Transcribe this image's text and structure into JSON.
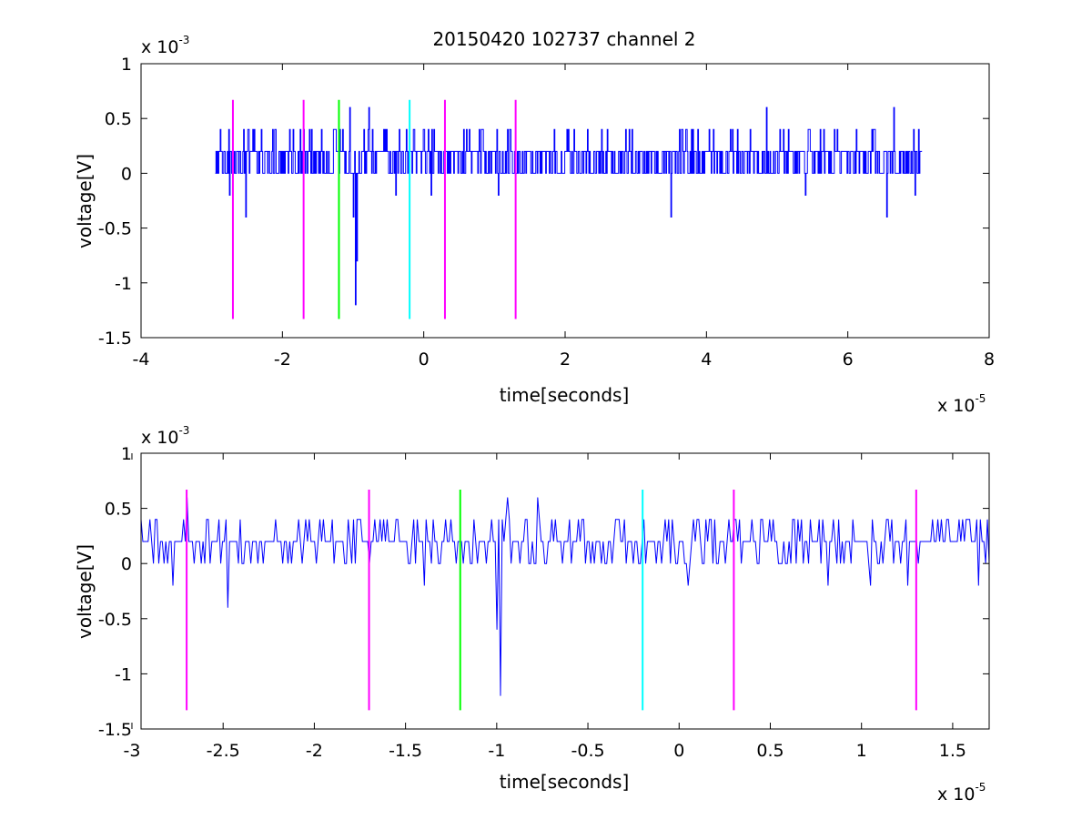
{
  "figure": {
    "title": "20150420 102737 channel 2"
  },
  "colors": {
    "signal": "#0000ff",
    "magenta_marker": "#ff00ff",
    "green_marker": "#00ff00",
    "cyan_marker": "#00ffff",
    "axes": "#000000"
  },
  "chart_data": [
    {
      "type": "line",
      "title": "20150420 102737 channel 2",
      "xlabel": "time[seconds]",
      "ylabel": "voltage[V]",
      "x_exponent_label": "x 10",
      "x_exponent": "-5",
      "y_exponent_label": "x 10",
      "y_exponent": "-3",
      "xlim": [
        -4,
        8
      ],
      "ylim": [
        -1.5,
        1
      ],
      "xticks": [
        -4,
        -2,
        0,
        2,
        4,
        6,
        8
      ],
      "xtick_labels": [
        "-4",
        "-2",
        "0",
        "2",
        "4",
        "6",
        "8"
      ],
      "yticks": [
        -1.5,
        -1,
        -0.5,
        0,
        0.5,
        1
      ],
      "ytick_labels": [
        "-1.5",
        "-1",
        "-0.5",
        "0",
        "0.5",
        "1"
      ],
      "grid": false,
      "signal": {
        "x_range": [
          -2.95,
          7.05
        ],
        "baseline": 0.2,
        "quantum": 0.2,
        "dense": true,
        "spikes": [
          {
            "x": -2.88,
            "y": 0.4
          },
          {
            "x": -2.75,
            "y": -0.2
          },
          {
            "x": -2.55,
            "y": 0.4
          },
          {
            "x": -2.52,
            "y": -0.4
          },
          {
            "x": -2.42,
            "y": 0.4
          },
          {
            "x": -2.3,
            "y": 0.4
          },
          {
            "x": -2.1,
            "y": 0.4
          },
          {
            "x": -1.85,
            "y": 0.4
          },
          {
            "x": -1.62,
            "y": 0.4
          },
          {
            "x": -1.45,
            "y": 0.4
          },
          {
            "x": -1.25,
            "y": 0.4
          },
          {
            "x": -1.05,
            "y": 0.6
          },
          {
            "x": -1.0,
            "y": -0.4
          },
          {
            "x": -0.97,
            "y": -1.2
          },
          {
            "x": -0.95,
            "y": -0.8
          },
          {
            "x": -0.85,
            "y": 0.4
          },
          {
            "x": -0.78,
            "y": 0.6
          },
          {
            "x": -0.4,
            "y": -0.2
          },
          {
            "x": 0.1,
            "y": -0.2
          },
          {
            "x": 0.6,
            "y": 0.4
          },
          {
            "x": 1.05,
            "y": -0.2
          },
          {
            "x": 2.6,
            "y": 0.4
          },
          {
            "x": 3.5,
            "y": -0.4
          },
          {
            "x": 4.1,
            "y": 0.4
          },
          {
            "x": 4.85,
            "y": 0.6
          },
          {
            "x": 5.4,
            "y": -0.2
          },
          {
            "x": 6.55,
            "y": -0.4
          },
          {
            "x": 6.65,
            "y": 0.6
          },
          {
            "x": 6.95,
            "y": -0.2
          }
        ]
      },
      "markers": [
        {
          "x": -2.7,
          "color": "#ff00ff"
        },
        {
          "x": -1.7,
          "color": "#ff00ff"
        },
        {
          "x": -1.2,
          "color": "#00ff00"
        },
        {
          "x": -0.2,
          "color": "#00ffff"
        },
        {
          "x": 0.3,
          "color": "#ff00ff"
        },
        {
          "x": 1.3,
          "color": "#ff00ff"
        }
      ],
      "marker_range": [
        -1.33,
        0.67
      ]
    },
    {
      "type": "line",
      "xlabel": "time[seconds]",
      "ylabel": "voltage[V]",
      "x_exponent_label": "x 10",
      "x_exponent": "-5",
      "y_exponent_label": "x 10",
      "y_exponent": "-3",
      "xlim": [
        -2.95,
        1.7
      ],
      "ylim": [
        -1.5,
        1
      ],
      "xticks": [
        -3,
        -2.5,
        -2,
        -1.5,
        -1,
        -0.5,
        0,
        0.5,
        1,
        1.5
      ],
      "xtick_labels": [
        "-3",
        "-2.5",
        "-2",
        "-1.5",
        "-1",
        "-0.5",
        "0",
        "0.5",
        "1",
        "1.5"
      ],
      "yticks": [
        -1.5,
        -1,
        -0.5,
        0,
        0.5,
        1
      ],
      "ytick_labels": [
        "-1.5",
        "-1",
        "-0.5",
        "0",
        "0.5",
        "1"
      ],
      "grid": false,
      "signal": {
        "x_range": [
          -2.95,
          1.7
        ],
        "baseline": 0.2,
        "quantum": 0.2,
        "dense": false,
        "spikes": [
          {
            "x": -2.87,
            "y": 0.4
          },
          {
            "x": -2.78,
            "y": -0.2
          },
          {
            "x": -2.7,
            "y": 0.6
          },
          {
            "x": -2.58,
            "y": 0.4
          },
          {
            "x": -2.47,
            "y": -0.4
          },
          {
            "x": -2.05,
            "y": 0.4
          },
          {
            "x": -1.75,
            "y": 0.4
          },
          {
            "x": -1.62,
            "y": 0.4
          },
          {
            "x": -1.55,
            "y": 0.4
          },
          {
            "x": -1.4,
            "y": -0.2
          },
          {
            "x": -1.28,
            "y": 0.4
          },
          {
            "x": -1.0,
            "y": -0.6
          },
          {
            "x": -0.98,
            "y": -1.2
          },
          {
            "x": -0.94,
            "y": 0.6
          },
          {
            "x": -0.78,
            "y": 0.6
          },
          {
            "x": -0.6,
            "y": 0.4
          },
          {
            "x": -0.3,
            "y": 0.4
          },
          {
            "x": 0.05,
            "y": -0.2
          },
          {
            "x": 0.3,
            "y": 0.4
          },
          {
            "x": 0.62,
            "y": 0.4
          },
          {
            "x": 0.82,
            "y": -0.2
          },
          {
            "x": 1.05,
            "y": -0.2
          },
          {
            "x": 1.15,
            "y": 0.4
          },
          {
            "x": 1.25,
            "y": -0.2
          },
          {
            "x": 1.55,
            "y": 0.4
          },
          {
            "x": 1.64,
            "y": -0.2
          }
        ]
      },
      "markers": [
        {
          "x": -2.7,
          "color": "#ff00ff"
        },
        {
          "x": -1.7,
          "color": "#ff00ff"
        },
        {
          "x": -1.2,
          "color": "#00ff00"
        },
        {
          "x": -0.2,
          "color": "#00ffff"
        },
        {
          "x": 0.3,
          "color": "#ff00ff"
        },
        {
          "x": 1.3,
          "color": "#ff00ff"
        }
      ],
      "marker_range": [
        -1.33,
        0.67
      ]
    }
  ]
}
